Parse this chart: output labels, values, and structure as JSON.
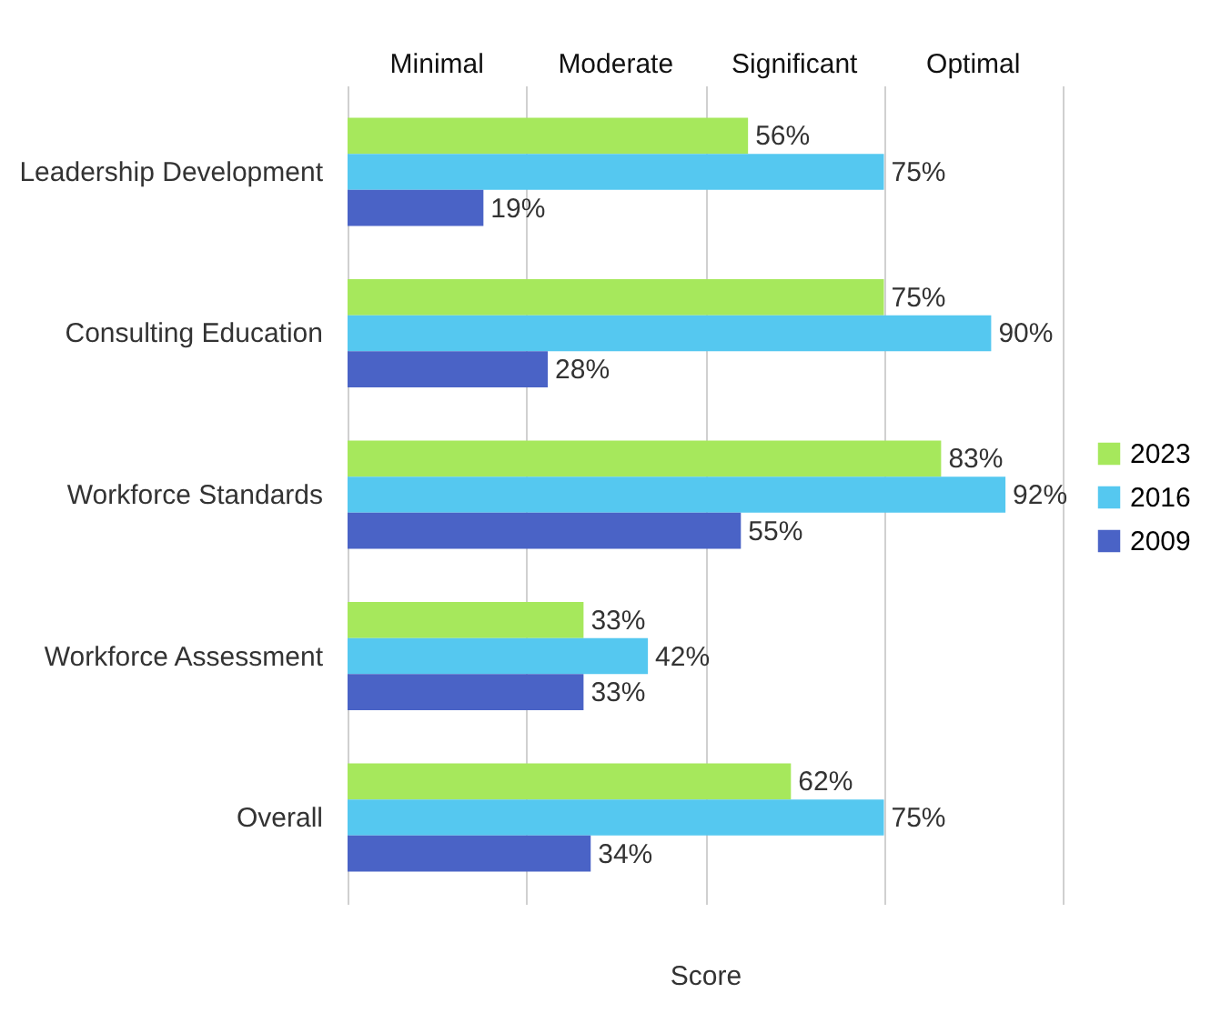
{
  "chart_data": {
    "type": "bar",
    "orientation": "horizontal",
    "xlabel": "Score",
    "categories": [
      "Leadership Development",
      "Consulting Education",
      "Workforce Standards",
      "Workforce Assessment",
      "Overall"
    ],
    "series": [
      {
        "name": "2023",
        "color": "#a6e85c",
        "values": [
          56,
          75,
          83,
          33,
          62
        ],
        "value_labels": [
          "56%",
          "75%",
          "83%",
          "33%",
          "62%"
        ]
      },
      {
        "name": "2016",
        "color": "#55c8f0",
        "values": [
          75,
          90,
          92,
          42,
          75
        ],
        "value_labels": [
          "75%",
          "90%",
          "92%",
          "42%",
          "75%"
        ]
      },
      {
        "name": "2009",
        "color": "#4a63c6",
        "values": [
          19,
          28,
          55,
          33,
          34
        ],
        "value_labels": [
          "19%",
          "28%",
          "55%",
          "33%",
          "34%"
        ]
      }
    ],
    "xlim": [
      0,
      100
    ],
    "xticks": [
      {
        "value": 0,
        "label": null
      },
      {
        "value": 25,
        "label": null
      },
      {
        "value": 50,
        "label": null
      },
      {
        "value": 75,
        "label": null
      },
      {
        "value": 100,
        "label": null
      }
    ],
    "annotations": [
      "Minimal",
      "Moderate",
      "Significant",
      "Optimal"
    ],
    "grid": "x",
    "legend": "right"
  }
}
